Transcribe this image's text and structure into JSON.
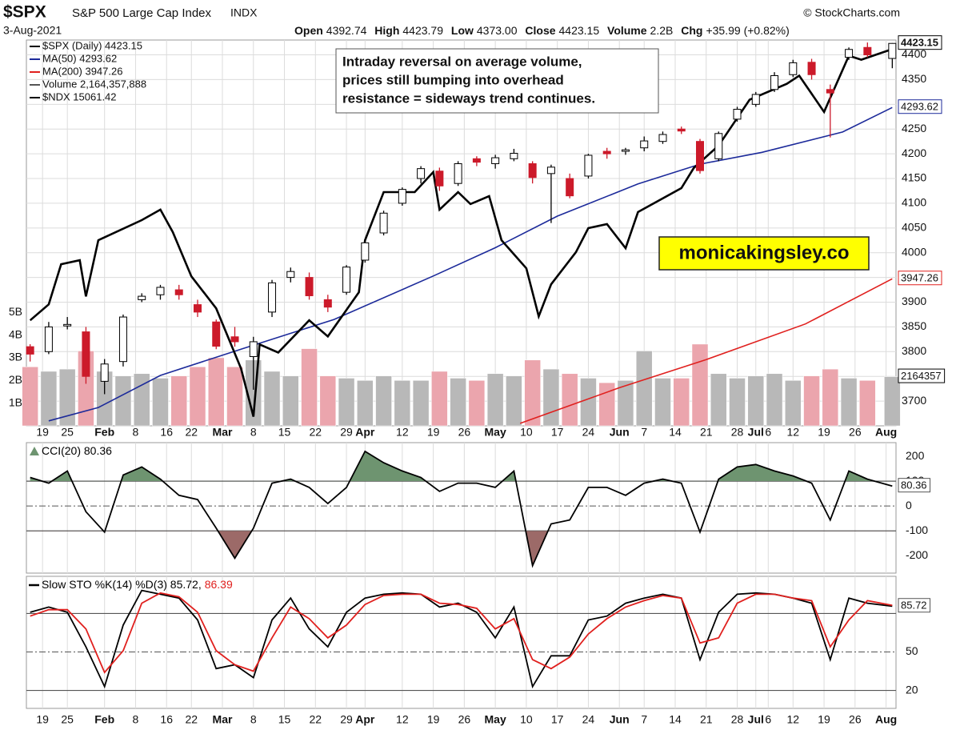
{
  "header": {
    "symbol": "$SPX",
    "name": "S&P 500 Large Cap Index",
    "exchange": "INDX",
    "source": "© StockCharts.com",
    "date": "3-Aug-2021",
    "quote": [
      {
        "label": "Open",
        "value": "4392.74"
      },
      {
        "label": "High",
        "value": "4423.79"
      },
      {
        "label": "Low",
        "value": "4373.00"
      },
      {
        "label": "Close",
        "value": "4423.15"
      },
      {
        "label": "Volume",
        "value": "2.2B"
      },
      {
        "label": "Chg",
        "value": "+35.99 (+0.82%)"
      }
    ]
  },
  "chart_data": [
    {
      "type": "candlestick",
      "name": "$SPX (Daily) 4423.15",
      "annotation": [
        "Intraday reversal on average volume,",
        "prices still bumping into overhead",
        "resistance = sideways trend continues."
      ],
      "watermark": "monicakingsley.co",
      "x": [
        0,
        3,
        6,
        9,
        12,
        15,
        18,
        21,
        24,
        27,
        30,
        33,
        36,
        39,
        42,
        45,
        48,
        51,
        54,
        57,
        60,
        63,
        66,
        69,
        72,
        75,
        78,
        81,
        84,
        87,
        90,
        93,
        96,
        99,
        102,
        105,
        108,
        111,
        114,
        117,
        120,
        123,
        126,
        129,
        132,
        135,
        139
      ],
      "open": [
        3810,
        3800,
        3852,
        3840,
        3740,
        3780,
        3905,
        3915,
        3925,
        3895,
        3860,
        3830,
        3790,
        3880,
        3950,
        3950,
        3905,
        3920,
        3985,
        4040,
        4100,
        4150,
        4165,
        4140,
        4190,
        4180,
        4190,
        4180,
        4160,
        4150,
        4155,
        4205,
        4205,
        4212,
        4225,
        4250,
        4225,
        4190,
        4270,
        4300,
        4330,
        4360,
        4385,
        4330,
        4395,
        4415,
        4392.74
      ],
      "high": [
        3815,
        3860,
        3870,
        3850,
        3785,
        3875,
        3918,
        3935,
        3935,
        3905,
        3865,
        3850,
        3830,
        3945,
        3970,
        3960,
        3915,
        3975,
        4025,
        4085,
        4132,
        4175,
        4172,
        4185,
        4195,
        4198,
        4210,
        4185,
        4178,
        4160,
        4200,
        4212,
        4212,
        4235,
        4245,
        4255,
        4230,
        4245,
        4295,
        4325,
        4365,
        4390,
        4392,
        4340,
        4415,
        4425,
        4423.79
      ],
      "low": [
        3780,
        3795,
        3845,
        3735,
        3714,
        3770,
        3900,
        3905,
        3905,
        3870,
        3805,
        3810,
        3723,
        3870,
        3940,
        3905,
        3880,
        3915,
        3980,
        4035,
        4095,
        4140,
        4125,
        4135,
        4175,
        4170,
        4185,
        4140,
        4060,
        4110,
        4150,
        4190,
        4198,
        4205,
        4220,
        4240,
        4160,
        4185,
        4265,
        4295,
        4325,
        4355,
        4350,
        4233,
        4390,
        4395,
        4373
      ],
      "close": [
        3795,
        3850,
        3855,
        3750,
        3775,
        3870,
        3912,
        3930,
        3915,
        3880,
        3811,
        3820,
        3820,
        3939,
        3962,
        3913,
        3890,
        3971,
        4020,
        4080,
        4128,
        4170,
        4135,
        4180,
        4183,
        4192,
        4201,
        4152,
        4173,
        4115,
        4197,
        4200,
        4208,
        4226,
        4239,
        4246,
        4166,
        4241,
        4290,
        4320,
        4358,
        4384,
        4360,
        4323,
        4411,
        4400,
        4423.15
      ],
      "up_color": "#ffffff",
      "down_color": "#cc1a2a",
      "edge_color": "#000000",
      "overlays": [
        {
          "name": "MA(50) 4293.62",
          "color": "#1c2a9a",
          "last_value_tag": true,
          "x": [
            3,
            11,
            21,
            34,
            49,
            65,
            75,
            85,
            98,
            108,
            118,
            131,
            139
          ],
          "values": [
            3660,
            3687,
            3752,
            3805,
            3865,
            3953,
            4010,
            4074,
            4139,
            4179,
            4203,
            4244,
            4293.62
          ]
        },
        {
          "name": "MA(200) 3947.26",
          "color": "#e0201e",
          "last_value_tag": true,
          "x": [
            79,
            95,
            109,
            125,
            139
          ],
          "values": [
            3655,
            3727,
            3784,
            3856,
            3947.26
          ]
        },
        {
          "name": "$NDX 15061.42",
          "color": "#000000",
          "axis": "y3",
          "last_value_tag": false,
          "x": [
            0,
            3,
            5,
            8,
            9,
            11,
            18,
            21,
            23,
            26,
            30,
            34,
            36,
            37,
            40,
            45,
            48,
            53,
            54,
            57,
            62,
            65,
            66,
            69,
            71,
            74,
            76,
            80,
            82,
            84,
            88,
            90,
            93,
            96,
            98,
            105,
            107,
            111,
            116,
            122,
            124,
            128,
            132,
            134,
            139
          ],
          "values": [
            13023,
            13143,
            13445,
            13475,
            13203,
            13625,
            13776,
            13855,
            13686,
            13354,
            13113,
            12661,
            12299,
            12842,
            12781,
            13023,
            12902,
            13234,
            13625,
            13987,
            13987,
            14138,
            13855,
            13987,
            13897,
            13957,
            13625,
            13414,
            13053,
            13294,
            13535,
            13716,
            13746,
            13565,
            13837,
            14017,
            14168,
            14337,
            14681,
            14801,
            14862,
            14590,
            15012,
            14982,
            15061.42
          ]
        }
      ],
      "volume": {
        "name": "Volume 2,164,357,888",
        "axis": "y2",
        "up_color": "#b8b8b8",
        "down_color": "#eba5ad",
        "values": [
          2.6,
          2.4,
          2.5,
          3.3,
          2.4,
          2.2,
          2.3,
          2.1,
          2.2,
          2.6,
          3.0,
          2.6,
          2.9,
          2.4,
          2.2,
          3.4,
          2.2,
          2.1,
          2.0,
          2.2,
          2.0,
          2.0,
          2.4,
          2.1,
          2.0,
          2.3,
          2.2,
          2.9,
          2.5,
          2.3,
          2.1,
          1.9,
          2.0,
          3.3,
          2.1,
          2.1,
          3.6,
          2.3,
          2.1,
          2.2,
          2.3,
          2.0,
          2.2,
          2.5,
          2.1,
          2.0,
          2.164357
        ],
        "value_labels": [
          null,
          null,
          null,
          null,
          null,
          null,
          null,
          null,
          null,
          null,
          null,
          null,
          null,
          null,
          null,
          null,
          null,
          null,
          null,
          null,
          null,
          null,
          null,
          null,
          null,
          null,
          null,
          null,
          null,
          null,
          null,
          null,
          null,
          null,
          null,
          null,
          null,
          null,
          null,
          null,
          null,
          null,
          null,
          null,
          null,
          null,
          "2164357"
        ]
      },
      "xlim": [
        -0.6,
        139.6
      ],
      "xticks": [
        {
          "value": 2,
          "label": "19"
        },
        {
          "value": 6,
          "label": "25"
        },
        {
          "value": 12,
          "label": "Feb"
        },
        {
          "value": 17,
          "label": "8"
        },
        {
          "value": 22,
          "label": "16"
        },
        {
          "value": 26,
          "label": "22"
        },
        {
          "value": 31,
          "label": "Mar"
        },
        {
          "value": 36,
          "label": "8"
        },
        {
          "value": 41,
          "label": "15"
        },
        {
          "value": 46,
          "label": "22"
        },
        {
          "value": 51,
          "label": "29"
        },
        {
          "value": 54,
          "label": "Apr"
        },
        {
          "value": 60,
          "label": "12"
        },
        {
          "value": 65,
          "label": "19"
        },
        {
          "value": 70,
          "label": "26"
        },
        {
          "value": 75,
          "label": "May"
        },
        {
          "value": 80,
          "label": "10"
        },
        {
          "value": 85,
          "label": "17"
        },
        {
          "value": 90,
          "label": "24"
        },
        {
          "value": 95,
          "label": "Jun"
        },
        {
          "value": 99,
          "label": "7"
        },
        {
          "value": 104,
          "label": "14"
        },
        {
          "value": 109,
          "label": "21"
        },
        {
          "value": 114,
          "label": "28"
        },
        {
          "value": 117,
          "label": "Jul"
        },
        {
          "value": 119,
          "label": "6"
        },
        {
          "value": 123,
          "label": "12"
        },
        {
          "value": 128,
          "label": "19"
        },
        {
          "value": 133,
          "label": "26"
        },
        {
          "value": 138,
          "label": "Aug"
        }
      ],
      "ylim": [
        3650,
        4430
      ],
      "yticks": [
        3700,
        3750,
        3800,
        3850,
        3900,
        3950,
        4000,
        4050,
        4100,
        4150,
        4200,
        4250,
        4300,
        4350,
        4400
      ],
      "y2lim": [
        0,
        17
      ],
      "y2ticks": [
        {
          "value": 1,
          "label": "1B"
        },
        {
          "value": 2,
          "label": "2B"
        },
        {
          "value": 3,
          "label": "3B"
        },
        {
          "value": 4,
          "label": "4B"
        },
        {
          "value": 5,
          "label": "5B"
        }
      ],
      "y3lim": [
        12230,
        15130
      ],
      "grid": true
    },
    {
      "type": "line",
      "name": "CCI(20) 80.36",
      "color": "#000000",
      "x": [
        0,
        3,
        6,
        9,
        12,
        15,
        18,
        21,
        24,
        27,
        30,
        33,
        36,
        39,
        42,
        45,
        48,
        51,
        54,
        57,
        60,
        63,
        66,
        69,
        72,
        75,
        78,
        81,
        84,
        87,
        90,
        93,
        96,
        99,
        102,
        105,
        108,
        111,
        114,
        117,
        120,
        123,
        126,
        129,
        132,
        135,
        139
      ],
      "values": [
        115,
        92,
        141,
        -23,
        -105,
        125,
        157,
        108,
        43,
        26,
        -89,
        -210,
        -89,
        92,
        108,
        75,
        10,
        75,
        220,
        174,
        141,
        115,
        59,
        92,
        92,
        75,
        141,
        -240,
        -72,
        -56,
        75,
        75,
        43,
        92,
        108,
        92,
        -105,
        108,
        157,
        167,
        141,
        121,
        92,
        -56,
        141,
        108,
        80.36
      ],
      "fill_above": {
        "level": 100,
        "color": "#6e9470"
      },
      "fill_below": {
        "level": -100,
        "color": "#9c6a68"
      },
      "ylim": [
        -270,
        255
      ],
      "yticks": [
        -200,
        -100,
        0,
        100,
        200
      ],
      "solid_lines": [
        100,
        -100
      ],
      "dashed_lines": [
        0
      ],
      "last_value_tag": true
    },
    {
      "type": "line",
      "x": [
        0,
        3,
        6,
        9,
        12,
        15,
        18,
        21,
        24,
        27,
        30,
        33,
        36,
        39,
        42,
        45,
        48,
        51,
        54,
        57,
        60,
        63,
        66,
        69,
        72,
        75,
        78,
        81,
        84,
        87,
        90,
        93,
        96,
        99,
        102,
        105,
        108,
        111,
        114,
        117,
        120,
        123,
        126,
        129,
        132,
        135,
        139
      ],
      "series": [
        {
          "name": "Slow STO %K(14) %D(3) 85.72,",
          "color": "#000000",
          "values": [
            81,
            85,
            81,
            54,
            23,
            71,
            98,
            95,
            92,
            75,
            37,
            40,
            30,
            75,
            92,
            68,
            54,
            81,
            92,
            95,
            96,
            95,
            85,
            88,
            81,
            61,
            85,
            23,
            47,
            47,
            75,
            78,
            88,
            92,
            95,
            92,
            44,
            81,
            95,
            96,
            95,
            92,
            88,
            44,
            92,
            88,
            85.72
          ]
        },
        {
          "name": "86.39",
          "color": "#e0201e",
          "values": [
            78,
            83,
            83,
            68,
            34,
            51,
            88,
            96,
            93,
            81,
            51,
            40,
            35,
            61,
            85,
            76,
            61,
            71,
            87,
            94,
            95,
            95,
            88,
            87,
            84,
            68,
            76,
            44,
            37,
            46,
            64,
            76,
            85,
            90,
            94,
            92,
            57,
            61,
            88,
            95,
            95,
            92,
            90,
            54,
            75,
            90,
            86.39
          ]
        }
      ],
      "ylim": [
        6,
        109
      ],
      "yticks": [
        20,
        50
      ],
      "solid_lines": [
        80,
        20
      ],
      "dashed_lines": [
        50
      ],
      "last_value_tag": true
    }
  ]
}
